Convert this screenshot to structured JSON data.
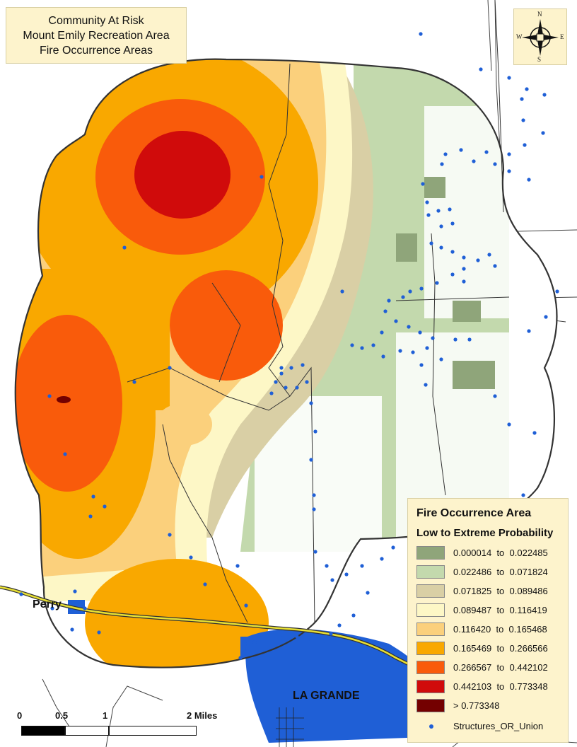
{
  "title": {
    "line1": "Community At Risk",
    "line2": "Mount Emily Recreation Area",
    "line3": "Fire Occurrence Areas"
  },
  "compass": {
    "n": "N",
    "s": "S",
    "e": "E",
    "w": "W",
    "icon": "compass-rose-icon"
  },
  "legend": {
    "title": "Fire Occurrence Area",
    "subtitle": "Low to Extreme Probability",
    "classes": [
      {
        "label": "0.000014  to  0.022485",
        "color": "#8fa57a"
      },
      {
        "label": "0.022486  to  0.071824",
        "color": "#c3d9ad"
      },
      {
        "label": "0.071825  to  0.089486",
        "color": "#d9cfa5"
      },
      {
        "label": "0.089487  to  0.116419",
        "color": "#fdf7c6"
      },
      {
        "label": "0.116420  to  0.165468",
        "color": "#fbd07c"
      },
      {
        "label": "0.165469  to  0.266566",
        "color": "#f9a800"
      },
      {
        "label": "0.266567  to  0.442102",
        "color": "#f95b0b"
      },
      {
        "label": "0.442103  to  0.773348",
        "color": "#d00b0b"
      },
      {
        "label": "> 0.773348",
        "color": "#740000"
      }
    ],
    "structures_label": "Structures_OR_Union",
    "structures_color": "#1f5fd6"
  },
  "places": {
    "perry": "Perry",
    "la_grande": "LA GRANDE"
  },
  "scale_bar": {
    "t0": "0",
    "t1": "0.5",
    "t2": "1",
    "t3": "2 Miles"
  },
  "colors": {
    "boundary": "#333333",
    "highway": "#e8e033",
    "urban": "#1f5fd6"
  }
}
